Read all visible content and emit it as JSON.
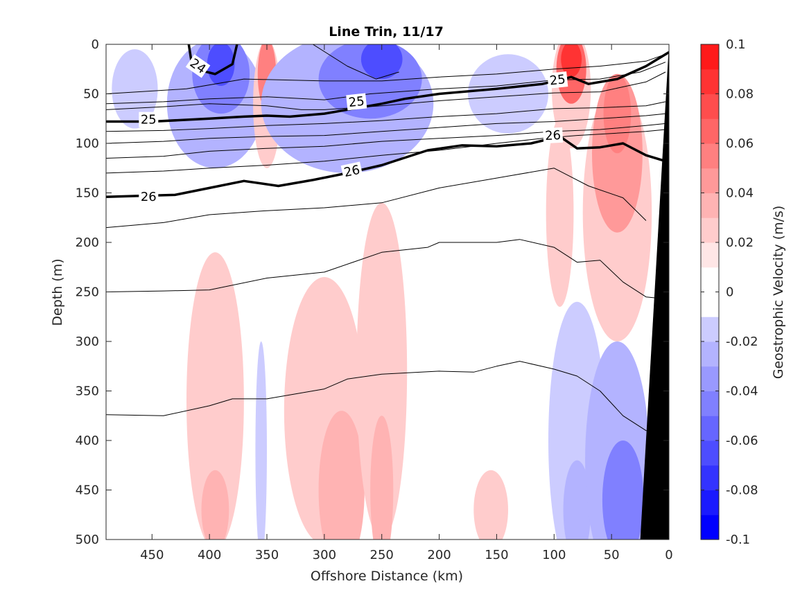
{
  "chart_data": {
    "type": "heatmap",
    "title": "Line Trin, 11/17",
    "xlabel": "Offshore Distance (km)",
    "ylabel": "Depth (m)",
    "xlim": [
      490,
      0
    ],
    "x_reversed": true,
    "ylim": [
      0,
      500
    ],
    "y_reversed": true,
    "x_ticks": [
      450,
      400,
      350,
      300,
      250,
      200,
      150,
      100,
      50,
      0
    ],
    "y_ticks": [
      0,
      50,
      100,
      150,
      200,
      250,
      300,
      350,
      400,
      450,
      500
    ],
    "colorbar": {
      "label": "Geostrophic Velocity (m/s)",
      "min": -0.1,
      "max": 0.1,
      "levels": [
        -0.1,
        -0.09,
        -0.08,
        -0.07,
        -0.06,
        -0.05,
        -0.04,
        -0.03,
        -0.02,
        -0.01,
        0,
        0.01,
        0.02,
        0.03,
        0.04,
        0.05,
        0.06,
        0.07,
        0.08,
        0.09,
        0.1
      ],
      "tick_values": [
        0.1,
        0.08,
        0.06,
        0.04,
        0.02,
        0,
        -0.02,
        -0.04,
        -0.06,
        -0.08,
        -0.1
      ],
      "tick_labels": [
        "0.1",
        "0.08",
        "0.06",
        "0.04",
        "0.02",
        "0",
        "-0.02",
        "-0.04",
        "-0.06",
        "-0.08",
        "-0.1"
      ],
      "colors": {
        "-0.1": "#0000ff",
        "-0.09": "#1a1aff",
        "-0.08": "#3333ff",
        "-0.07": "#4d4dff",
        "-0.06": "#6666ff",
        "-0.05": "#8080ff",
        "-0.04": "#9999ff",
        "-0.03": "#b3b3ff",
        "-0.02": "#ccccff",
        "-0.01": "#e6e6ff",
        "0": "#ffffff",
        "0.01": "#ffe6e6",
        "0.02": "#ffcccc",
        "0.03": "#ffb3b3",
        "0.04": "#ff9999",
        "0.05": "#ff8080",
        "0.06": "#ff6666",
        "0.07": "#ff4d4d",
        "0.08": "#ff3333",
        "0.09": "#ff1a1a"
      }
    },
    "velocity_blobs": [
      {
        "x": 465,
        "y": 45,
        "rx": 20,
        "ry": 40,
        "v": -0.02
      },
      {
        "x": 395,
        "y": 60,
        "rx": 42,
        "ry": 65,
        "v": -0.03
      },
      {
        "x": 390,
        "y": 30,
        "rx": 25,
        "ry": 40,
        "v": -0.05
      },
      {
        "x": 390,
        "y": 20,
        "rx": 12,
        "ry": 22,
        "v": -0.07
      },
      {
        "x": 350,
        "y": 60,
        "rx": 12,
        "ry": 65,
        "v": 0.02
      },
      {
        "x": 350,
        "y": 30,
        "rx": 8,
        "ry": 35,
        "v": 0.05
      },
      {
        "x": 280,
        "y": 60,
        "rx": 75,
        "ry": 70,
        "v": -0.03
      },
      {
        "x": 260,
        "y": 35,
        "rx": 45,
        "ry": 40,
        "v": -0.05
      },
      {
        "x": 250,
        "y": 15,
        "rx": 18,
        "ry": 20,
        "v": -0.07
      },
      {
        "x": 140,
        "y": 50,
        "rx": 35,
        "ry": 40,
        "v": -0.02
      },
      {
        "x": 95,
        "y": 170,
        "rx": 12,
        "ry": 95,
        "v": 0.02
      },
      {
        "x": 85,
        "y": 45,
        "rx": 17,
        "ry": 60,
        "v": 0.02
      },
      {
        "x": 85,
        "y": 25,
        "rx": 13,
        "ry": 35,
        "v": 0.06
      },
      {
        "x": 85,
        "y": 15,
        "rx": 9,
        "ry": 18,
        "v": 0.08
      },
      {
        "x": 45,
        "y": 170,
        "rx": 30,
        "ry": 130,
        "v": 0.02
      },
      {
        "x": 45,
        "y": 110,
        "rx": 22,
        "ry": 80,
        "v": 0.04
      },
      {
        "x": 45,
        "y": 70,
        "rx": 12,
        "ry": 40,
        "v": 0.05
      },
      {
        "x": 395,
        "y": 360,
        "rx": 25,
        "ry": 150,
        "v": 0.02
      },
      {
        "x": 395,
        "y": 470,
        "rx": 12,
        "ry": 40,
        "v": 0.03
      },
      {
        "x": 355,
        "y": 410,
        "rx": 5,
        "ry": 110,
        "v": -0.02
      },
      {
        "x": 300,
        "y": 370,
        "rx": 35,
        "ry": 135,
        "v": 0.02
      },
      {
        "x": 285,
        "y": 450,
        "rx": 20,
        "ry": 80,
        "v": 0.03
      },
      {
        "x": 250,
        "y": 330,
        "rx": 22,
        "ry": 170,
        "v": 0.02
      },
      {
        "x": 250,
        "y": 450,
        "rx": 10,
        "ry": 75,
        "v": 0.03
      },
      {
        "x": 155,
        "y": 470,
        "rx": 15,
        "ry": 40,
        "v": 0.02
      },
      {
        "x": 80,
        "y": 400,
        "rx": 25,
        "ry": 140,
        "v": -0.02
      },
      {
        "x": 80,
        "y": 470,
        "rx": 12,
        "ry": 50,
        "v": -0.03
      },
      {
        "x": 45,
        "y": 420,
        "rx": 28,
        "ry": 120,
        "v": -0.03
      },
      {
        "x": 40,
        "y": 460,
        "rx": 18,
        "ry": 60,
        "v": -0.05
      }
    ],
    "density_contours": [
      {
        "level": 24,
        "bold": true,
        "x": [
          418,
          416,
          412,
          395,
          380,
          376
        ],
        "y": [
          0,
          15,
          25,
          30,
          20,
          0
        ]
      },
      {
        "level": null,
        "bold": false,
        "x": [
          310,
          280,
          255,
          235
        ],
        "y": [
          0,
          22,
          35,
          28
        ]
      },
      {
        "level": null,
        "bold": false,
        "x": [
          490,
          420,
          370,
          300,
          250,
          200,
          150,
          100,
          60,
          20,
          3
        ],
        "y": [
          50,
          45,
          35,
          37,
          37,
          33,
          30,
          25,
          22,
          17,
          10
        ]
      },
      {
        "level": null,
        "bold": false,
        "x": [
          490,
          440,
          400,
          350,
          300,
          260,
          200,
          150,
          100,
          60,
          25,
          3
        ],
        "y": [
          60,
          58,
          55,
          53,
          56,
          50,
          45,
          42,
          36,
          35,
          28,
          18
        ]
      },
      {
        "level": 25,
        "bold": true,
        "x": [
          490,
          450,
          400,
          370,
          350,
          330,
          300,
          250,
          230,
          200,
          150,
          110,
          85,
          70,
          45,
          20,
          0
        ],
        "y": [
          78,
          78,
          75,
          73,
          72,
          73,
          70,
          60,
          55,
          50,
          45,
          40,
          33,
          40,
          35,
          22,
          8
        ]
      },
      {
        "level": null,
        "bold": false,
        "x": [
          490,
          440,
          400,
          350,
          320,
          300,
          250,
          200,
          150,
          100,
          60,
          20,
          3
        ],
        "y": [
          66,
          63,
          60,
          62,
          66,
          66,
          62,
          57,
          53,
          49,
          48,
          38,
          28
        ]
      },
      {
        "level": null,
        "bold": false,
        "x": [
          490,
          440,
          400,
          350,
          300,
          250,
          200,
          150,
          100,
          60,
          20,
          3
        ],
        "y": [
          88,
          87,
          85,
          82,
          80,
          77,
          73,
          70,
          65,
          64,
          62,
          58
        ]
      },
      {
        "level": null,
        "bold": false,
        "x": [
          490,
          440,
          400,
          350,
          300,
          250,
          200,
          150,
          100,
          60,
          20,
          3
        ],
        "y": [
          100,
          98,
          95,
          93,
          92,
          88,
          84,
          80,
          78,
          75,
          72,
          70
        ]
      },
      {
        "level": null,
        "bold": false,
        "x": [
          490,
          440,
          400,
          350,
          300,
          250,
          200,
          150,
          100,
          60,
          20,
          3
        ],
        "y": [
          115,
          113,
          108,
          105,
          103,
          98,
          95,
          92,
          88,
          86,
          82,
          80
        ]
      },
      {
        "level": 26,
        "bold": true,
        "x": [
          490,
          460,
          430,
          400,
          370,
          340,
          310,
          280,
          250,
          210,
          180,
          150,
          120,
          95,
          80,
          60,
          40,
          20,
          3
        ],
        "y": [
          154,
          153,
          152,
          145,
          138,
          143,
          137,
          130,
          122,
          107,
          102,
          103,
          100,
          93,
          105,
          104,
          100,
          112,
          118
        ]
      },
      {
        "level": null,
        "bold": false,
        "x": [
          490,
          440,
          400,
          350,
          300,
          250,
          200,
          150,
          110,
          80,
          50,
          20,
          3
        ],
        "y": [
          130,
          128,
          125,
          122,
          118,
          112,
          107,
          100,
          95,
          92,
          90,
          88,
          86
        ]
      },
      {
        "level": null,
        "bold": false,
        "x": [
          490,
          440,
          400,
          350,
          300,
          250,
          200,
          150,
          100,
          70,
          40,
          20
        ],
        "y": [
          185,
          180,
          172,
          168,
          165,
          160,
          145,
          135,
          125,
          143,
          155,
          178
        ]
      },
      {
        "level": null,
        "bold": false,
        "x": [
          490,
          440,
          400,
          350,
          300,
          250,
          210,
          200,
          150,
          130,
          100,
          80,
          60,
          40,
          20,
          3
        ],
        "y": [
          250,
          249,
          248,
          236,
          230,
          210,
          205,
          200,
          200,
          197,
          205,
          220,
          218,
          240,
          255,
          257
        ]
      },
      {
        "level": null,
        "bold": false,
        "x": [
          490,
          440,
          400,
          380,
          350,
          300,
          280,
          250,
          200,
          170,
          150,
          130,
          100,
          80,
          60,
          40,
          20,
          3
        ],
        "y": [
          374,
          375,
          365,
          358,
          358,
          348,
          338,
          333,
          330,
          331,
          325,
          320,
          328,
          335,
          350,
          375,
          390,
          395
        ]
      }
    ],
    "contour_labels": [
      {
        "text": "24",
        "x": 410,
        "y": 22,
        "rotate": 35
      },
      {
        "text": "25",
        "x": 453,
        "y": 76,
        "rotate": 0
      },
      {
        "text": "25",
        "x": 272,
        "y": 58,
        "rotate": -6
      },
      {
        "text": "25",
        "x": 97,
        "y": 36,
        "rotate": -6
      },
      {
        "text": "26",
        "x": 453,
        "y": 154,
        "rotate": 0
      },
      {
        "text": "26",
        "x": 276,
        "y": 128,
        "rotate": -12
      },
      {
        "text": "26",
        "x": 101,
        "y": 92,
        "rotate": -3
      }
    ],
    "topography": {
      "x": [
        0,
        25,
        0
      ],
      "y": [
        0,
        500,
        500
      ],
      "top_x": 0,
      "top_y": 8
    }
  }
}
